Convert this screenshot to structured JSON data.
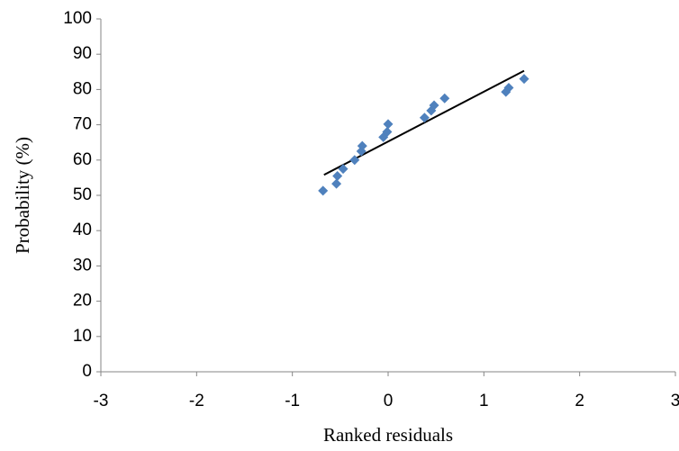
{
  "chart_data": {
    "type": "scatter",
    "x_label": "Ranked residuals",
    "y_label": "Probability (%)",
    "xlim": [
      -3,
      3
    ],
    "xticks": [
      -3,
      -2,
      -1,
      0,
      1,
      2,
      3
    ],
    "ylim": [
      0,
      100
    ],
    "yticks": [
      0,
      10,
      20,
      30,
      40,
      50,
      60,
      70,
      80,
      90,
      100
    ],
    "grid": false,
    "series": [
      {
        "color": "#4f81bd",
        "x": [
          -0.68,
          -0.54,
          -0.53,
          -0.47,
          -0.35,
          -0.28,
          -0.27,
          -0.05,
          -0.01,
          0.0,
          0.38,
          0.45,
          0.48,
          0.59,
          1.23,
          1.26,
          1.42
        ],
        "values": [
          51.3,
          53.3,
          55.5,
          57.5,
          60,
          62.5,
          64,
          66.5,
          68,
          70.2,
          72,
          74,
          75.5,
          77.5,
          79.3,
          80.5,
          83
        ]
      }
    ],
    "trendline": {
      "color": "#000000",
      "x": [
        -0.67,
        1.42
      ],
      "values": [
        55.8,
        85.3
      ]
    }
  }
}
